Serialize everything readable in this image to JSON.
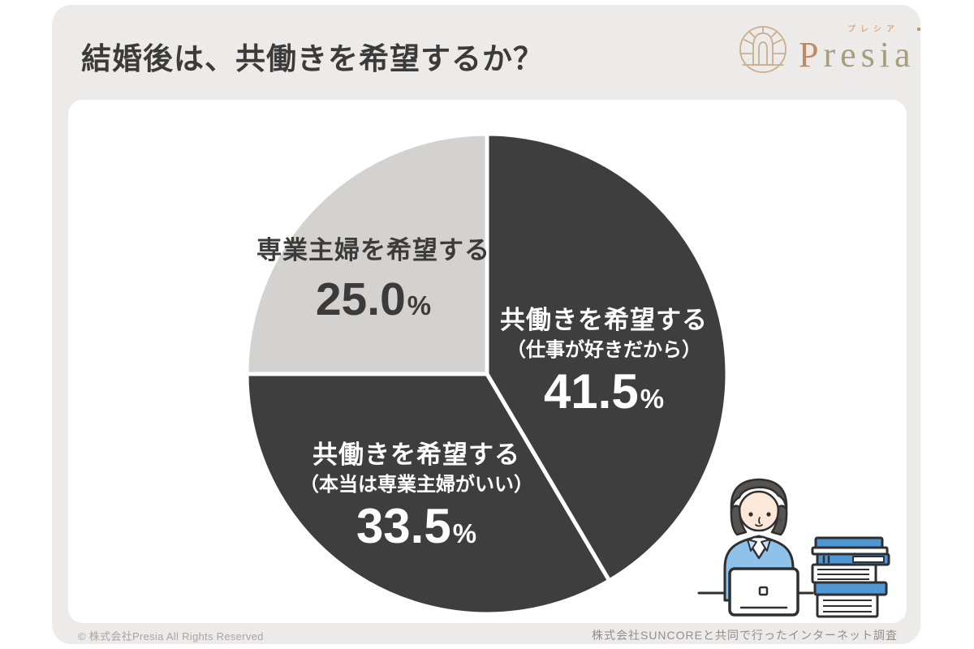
{
  "page": {
    "title": "結婚後は、共働きを希望するか？"
  },
  "logo": {
    "initial": "P",
    "rest": "resia",
    "kana": "プレシア"
  },
  "chart_data": {
    "type": "pie",
    "title": "結婚後は、共働きを希望するか？",
    "unit": "%",
    "direction": "clockwise",
    "start_angle_deg": 0,
    "slices": [
      {
        "label": "共働きを希望する",
        "sublabel": "（仕事が好きだから）",
        "value": 41.5,
        "display": "41.5",
        "color": "#3E3E3E",
        "text_color": "#FFFFFF"
      },
      {
        "label": "共働きを希望する",
        "sublabel": "（本当は専業主婦がいい）",
        "value": 33.5,
        "display": "33.5",
        "color": "#3E3E3E",
        "text_color": "#FFFFFF"
      },
      {
        "label": "専業主婦を希望する",
        "sublabel": "",
        "value": 25.0,
        "display": "25.0",
        "color": "#D3D2D0",
        "text_color": "#3B3B3B"
      }
    ]
  },
  "footer": {
    "copyright": "© 株式会社Presia All Rights Reserved",
    "source": "株式会社SUNCOREと共同で行ったインターネット調査"
  },
  "colors": {
    "panel_bg": "#ECEBE9",
    "card_bg": "#FFFFFF",
    "dark_slice": "#3E3E3E",
    "light_slice": "#D3D2D0",
    "title_text": "#3B3B3B",
    "separator": "#FFFFFF",
    "logo_tan": "#C9AE8C",
    "logo_initial": "#BE8A62",
    "book_blue": "#4E97D4",
    "jacket_blue": "#8FC2EA"
  }
}
